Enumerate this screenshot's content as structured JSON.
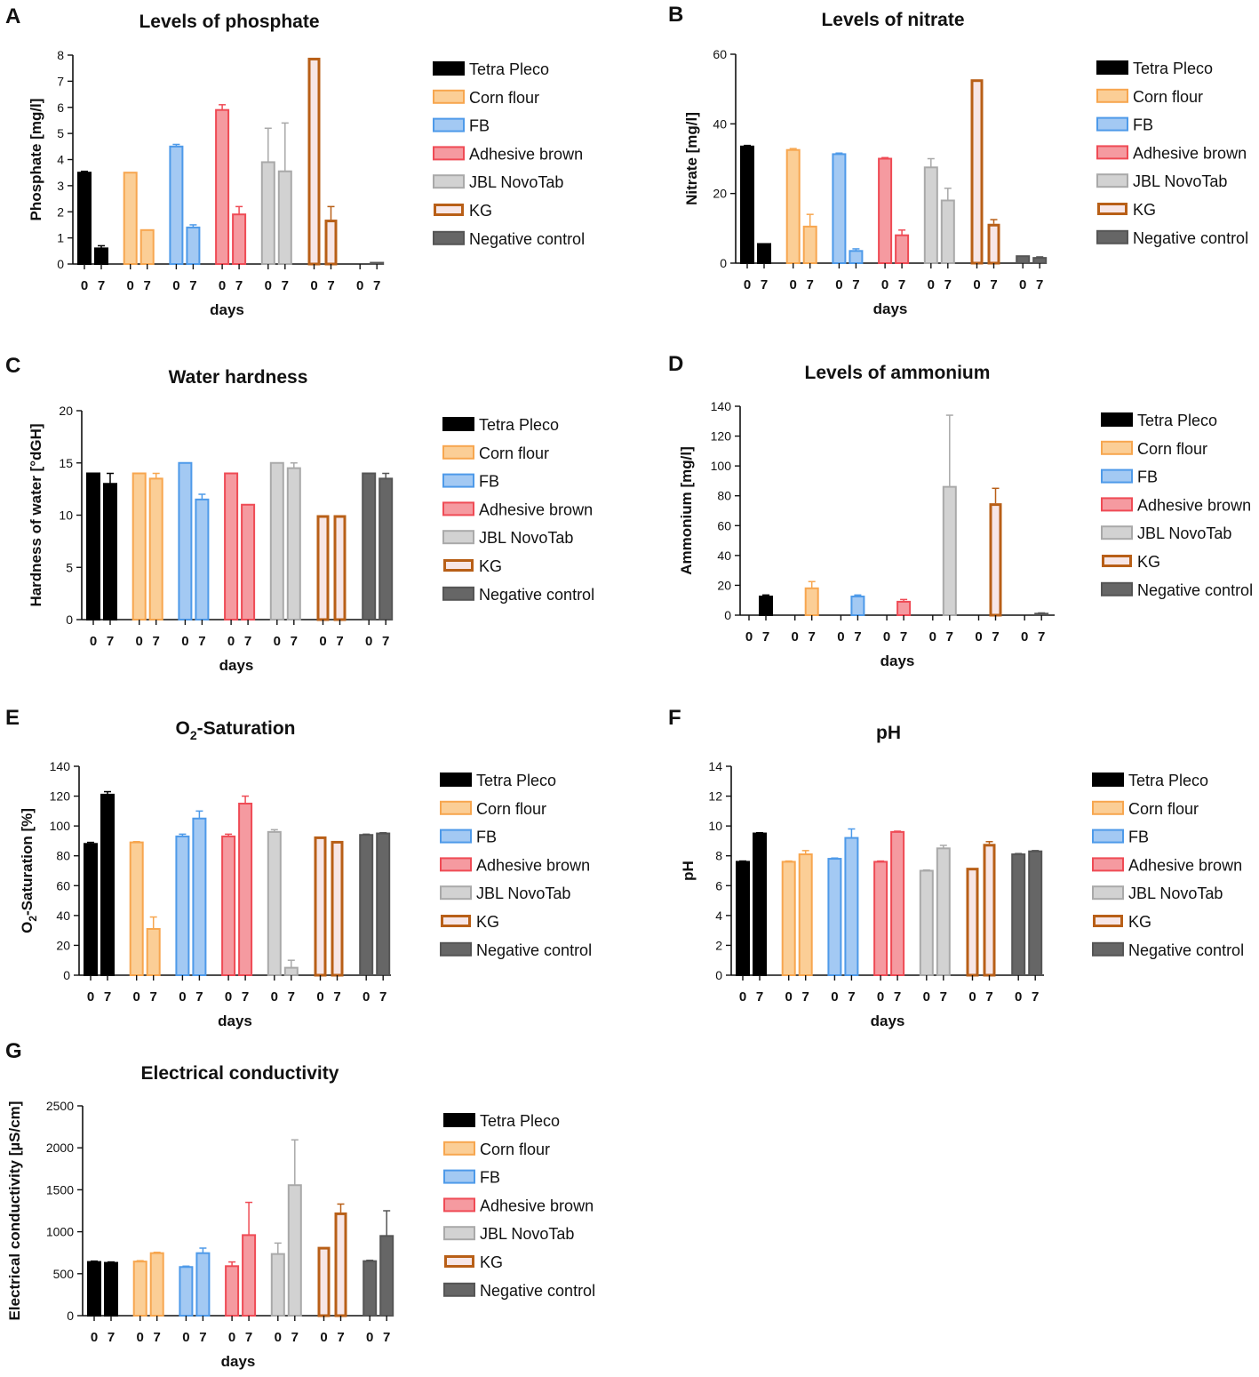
{
  "figure": {
    "series": [
      {
        "name": "Tetra Pleco",
        "color": "#000000",
        "fill": "#000000"
      },
      {
        "name": "Corn flour",
        "color": "#F7A64F",
        "fill": "#FBCE96"
      },
      {
        "name": "FB",
        "color": "#4E9AE9",
        "fill": "#A3C9F3"
      },
      {
        "name": "Adhesive brown",
        "color": "#EF4B55",
        "fill": "#F59AA0"
      },
      {
        "name": "JBL NovoTab",
        "color": "#A9A9A9",
        "fill": "#D2D2D2"
      },
      {
        "name": "KG",
        "color": "#B85F17",
        "fill": "#F7E6E6"
      },
      {
        "name": "Negative control",
        "color": "#555555",
        "fill": "#666666"
      }
    ],
    "categories": [
      "0",
      "7"
    ]
  },
  "chart_data": [
    {
      "panel": "A",
      "type": "bar",
      "title": "Levels of phosphate",
      "ylabel": "Phosphate [mg/l]",
      "xlabel": "days",
      "ylim": [
        0,
        8
      ],
      "yticks": [
        0,
        1,
        2,
        3,
        4,
        5,
        6,
        7,
        8
      ],
      "categories": [
        "0",
        "7"
      ],
      "series": [
        {
          "name": "Tetra Pleco",
          "values": [
            3.5,
            0.6
          ],
          "errors": [
            0.05,
            0.1
          ]
        },
        {
          "name": "Corn flour",
          "values": [
            3.5,
            1.3
          ],
          "errors": [
            0.0,
            0.0
          ]
        },
        {
          "name": "FB",
          "values": [
            4.5,
            1.4
          ],
          "errors": [
            0.08,
            0.1
          ]
        },
        {
          "name": "Adhesive brown",
          "values": [
            5.9,
            1.9
          ],
          "errors": [
            0.2,
            0.3
          ]
        },
        {
          "name": "JBL NovoTab",
          "values": [
            3.9,
            3.55
          ],
          "errors": [
            1.3,
            1.85
          ]
        },
        {
          "name": "KG",
          "values": [
            7.9,
            1.7
          ],
          "errors": [
            0.0,
            0.5
          ]
        },
        {
          "name": "Negative control",
          "values": [
            0.0,
            0.05
          ],
          "errors": [
            0.0,
            0.0
          ]
        }
      ]
    },
    {
      "panel": "B",
      "type": "bar",
      "title": "Levels of nitrate",
      "ylabel": "Nitrate [mg/l]",
      "xlabel": "days",
      "ylim": [
        0,
        60
      ],
      "yticks": [
        0,
        20,
        40,
        60
      ],
      "categories": [
        "0",
        "7"
      ],
      "series": [
        {
          "name": "Tetra Pleco",
          "values": [
            33.5,
            5.5
          ],
          "errors": [
            0.3,
            0.0
          ]
        },
        {
          "name": "Corn flour",
          "values": [
            32.5,
            10.5
          ],
          "errors": [
            0.4,
            3.5
          ]
        },
        {
          "name": "FB",
          "values": [
            31.3,
            3.5
          ],
          "errors": [
            0.3,
            0.6
          ]
        },
        {
          "name": "Adhesive brown",
          "values": [
            30.0,
            8.0
          ],
          "errors": [
            0.3,
            1.5
          ]
        },
        {
          "name": "JBL NovoTab",
          "values": [
            27.5,
            18.0
          ],
          "errors": [
            2.5,
            3.5
          ]
        },
        {
          "name": "KG",
          "values": [
            52.8,
            11.3
          ],
          "errors": [
            0.0,
            1.2
          ]
        },
        {
          "name": "Negative control",
          "values": [
            2.0,
            1.5
          ],
          "errors": [
            0.0,
            0.3
          ]
        }
      ]
    },
    {
      "panel": "C",
      "type": "bar",
      "title": "Water hardness",
      "ylabel": "Hardness of water [°dGH]",
      "xlabel": "days",
      "ylim": [
        0,
        20
      ],
      "yticks": [
        0,
        5,
        10,
        15,
        20
      ],
      "categories": [
        "0",
        "7"
      ],
      "series": [
        {
          "name": "Tetra Pleco",
          "values": [
            14.0,
            13.0
          ],
          "errors": [
            0.0,
            1.0
          ]
        },
        {
          "name": "Corn flour",
          "values": [
            14.0,
            13.5
          ],
          "errors": [
            0.0,
            0.5
          ]
        },
        {
          "name": "FB",
          "values": [
            15.0,
            11.5
          ],
          "errors": [
            0.0,
            0.5
          ]
        },
        {
          "name": "Adhesive brown",
          "values": [
            14.0,
            11.0
          ],
          "errors": [
            0.0,
            0.0
          ]
        },
        {
          "name": "JBL NovoTab",
          "values": [
            15.0,
            14.5
          ],
          "errors": [
            0.0,
            0.5
          ]
        },
        {
          "name": "KG",
          "values": [
            10.0,
            10.0
          ],
          "errors": [
            0.0,
            0.0
          ]
        },
        {
          "name": "Negative control",
          "values": [
            14.0,
            13.5
          ],
          "errors": [
            0.0,
            0.5
          ]
        }
      ]
    },
    {
      "panel": "D",
      "type": "bar",
      "title": "Levels of ammonium",
      "ylabel": "Ammonium [mg/l]",
      "xlabel": "days",
      "ylim": [
        0,
        140
      ],
      "yticks": [
        0,
        20,
        40,
        60,
        80,
        100,
        120,
        140
      ],
      "categories": [
        "0",
        "7"
      ],
      "series": [
        {
          "name": "Tetra Pleco",
          "values": [
            0.0,
            12.5
          ],
          "errors": [
            0.0,
            1.0
          ]
        },
        {
          "name": "Corn flour",
          "values": [
            0.0,
            18.0
          ],
          "errors": [
            0.0,
            4.5
          ]
        },
        {
          "name": "FB",
          "values": [
            0.0,
            12.5
          ],
          "errors": [
            0.0,
            1.0
          ]
        },
        {
          "name": "Adhesive brown",
          "values": [
            0.0,
            9.0
          ],
          "errors": [
            0.0,
            1.5
          ]
        },
        {
          "name": "JBL NovoTab",
          "values": [
            0.0,
            86.0
          ],
          "errors": [
            0.0,
            48.0
          ]
        },
        {
          "name": "KG",
          "values": [
            0.0,
            75.0
          ],
          "errors": [
            0.0,
            10.0
          ]
        },
        {
          "name": "Negative control",
          "values": [
            0.0,
            1.0
          ],
          "errors": [
            0.0,
            0.5
          ]
        }
      ]
    },
    {
      "panel": "E",
      "type": "bar",
      "title": "O2-Saturation",
      "ylabel": "O2-Saturation [%]",
      "xlabel": "days",
      "ylim": [
        0,
        140
      ],
      "yticks": [
        0,
        20,
        40,
        60,
        80,
        100,
        120,
        140
      ],
      "categories": [
        "0",
        "7"
      ],
      "series": [
        {
          "name": "Tetra Pleco",
          "values": [
            88.0,
            121.0
          ],
          "errors": [
            1.0,
            2.0
          ]
        },
        {
          "name": "Corn flour",
          "values": [
            89.0,
            31.0
          ],
          "errors": [
            0.5,
            8.0
          ]
        },
        {
          "name": "FB",
          "values": [
            93.0,
            105.0
          ],
          "errors": [
            1.5,
            5.0
          ]
        },
        {
          "name": "Adhesive brown",
          "values": [
            93.0,
            115.0
          ],
          "errors": [
            1.5,
            5.0
          ]
        },
        {
          "name": "JBL NovoTab",
          "values": [
            96.0,
            5.0
          ],
          "errors": [
            1.5,
            5.0
          ]
        },
        {
          "name": "KG",
          "values": [
            93.0,
            90.0
          ],
          "errors": [
            0.0,
            0.0
          ]
        },
        {
          "name": "Negative control",
          "values": [
            94.0,
            95.0
          ],
          "errors": [
            0.5,
            0.5
          ]
        }
      ]
    },
    {
      "panel": "F",
      "type": "bar",
      "title": "pH",
      "ylabel": "pH",
      "xlabel": "days",
      "ylim": [
        0,
        14
      ],
      "yticks": [
        0,
        2,
        4,
        6,
        8,
        10,
        12,
        14
      ],
      "categories": [
        "0",
        "7"
      ],
      "series": [
        {
          "name": "Tetra Pleco",
          "values": [
            7.6,
            9.5
          ],
          "errors": [
            0.05,
            0.05
          ]
        },
        {
          "name": "Corn flour",
          "values": [
            7.6,
            8.1
          ],
          "errors": [
            0.05,
            0.25
          ]
        },
        {
          "name": "FB",
          "values": [
            7.8,
            9.2
          ],
          "errors": [
            0.05,
            0.6
          ]
        },
        {
          "name": "Adhesive brown",
          "values": [
            7.6,
            9.6
          ],
          "errors": [
            0.05,
            0.05
          ]
        },
        {
          "name": "JBL NovoTab",
          "values": [
            7.0,
            8.5
          ],
          "errors": [
            0.05,
            0.2
          ]
        },
        {
          "name": "KG",
          "values": [
            7.2,
            8.8
          ],
          "errors": [
            0.0,
            0.15
          ]
        },
        {
          "name": "Negative control",
          "values": [
            8.1,
            8.3
          ],
          "errors": [
            0.05,
            0.05
          ]
        }
      ]
    },
    {
      "panel": "G",
      "type": "bar",
      "title": "Electrical conductivity",
      "ylabel": "Electrical conductivity [µS/cm]",
      "xlabel": "days",
      "ylim": [
        0,
        2500
      ],
      "yticks": [
        0,
        500,
        1000,
        1500,
        2000,
        2500
      ],
      "categories": [
        "0",
        "7"
      ],
      "series": [
        {
          "name": "Tetra Pleco",
          "values": [
            640,
            630
          ],
          "errors": [
            10,
            10
          ]
        },
        {
          "name": "Corn flour",
          "values": [
            645,
            745
          ],
          "errors": [
            10,
            10
          ]
        },
        {
          "name": "FB",
          "values": [
            580,
            745
          ],
          "errors": [
            10,
            60
          ]
        },
        {
          "name": "Adhesive brown",
          "values": [
            590,
            960
          ],
          "errors": [
            50,
            390
          ]
        },
        {
          "name": "JBL NovoTab",
          "values": [
            735,
            1555
          ],
          "errors": [
            130,
            540
          ]
        },
        {
          "name": "KG",
          "values": [
            820,
            1230
          ],
          "errors": [
            0,
            100
          ]
        },
        {
          "name": "Negative control",
          "values": [
            650,
            950
          ],
          "errors": [
            10,
            300
          ]
        }
      ]
    }
  ]
}
